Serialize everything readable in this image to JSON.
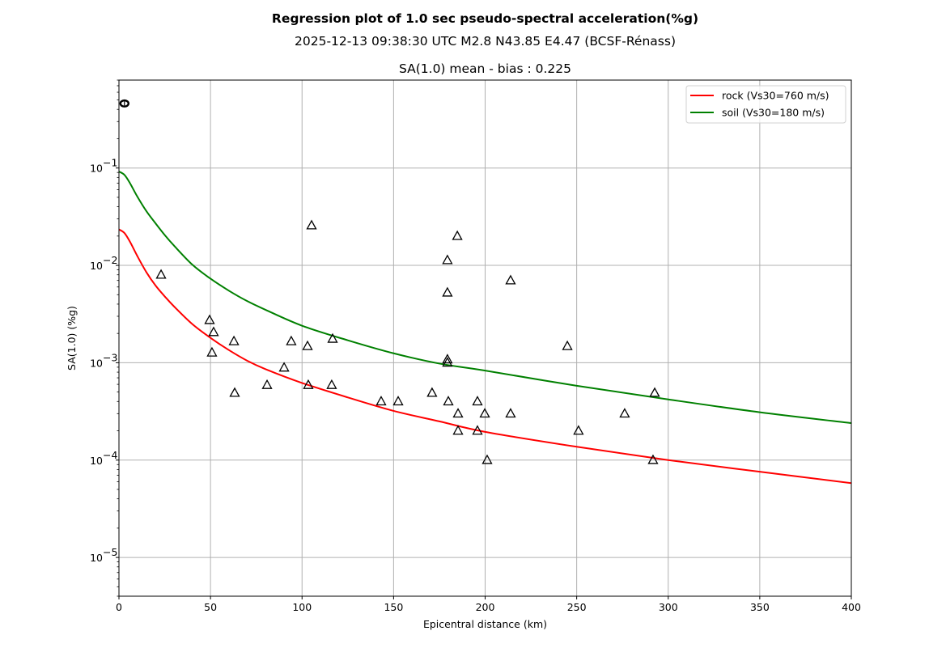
{
  "titles": {
    "main": "Regression plot of 1.0 sec pseudo-spectral acceleration(%g)",
    "event": "2025-12-13 09:38:30 UTC M2.8 N43.85 E4.47 (BCSF-Rénass)",
    "bias": "SA(1.0) mean - bias : 0.225"
  },
  "chart_data": {
    "type": "scatter",
    "title": "Regression plot of 1.0 sec pseudo-spectral acceleration(%g)",
    "subtitle": "2025-12-13 09:38:30 UTC M2.8 N43.85 E4.47 (BCSF-Rénass)",
    "axes_title": "SA(1.0) mean - bias : 0.225",
    "xlabel": "Epicentral distance (km)",
    "ylabel": "SA(1.0) (%g)",
    "xlim": [
      0,
      400
    ],
    "ylim": [
      4e-06,
      0.8
    ],
    "yscale": "log",
    "grid": true,
    "legend_position": "top-right",
    "x_ticks": [
      0,
      50,
      100,
      150,
      200,
      250,
      300,
      350,
      400
    ],
    "x_tick_labels": [
      "0",
      "50",
      "100",
      "150",
      "200",
      "250",
      "300",
      "350",
      "400"
    ],
    "y_ticks": [
      {
        "value": 0.1,
        "base": "10",
        "exp": "−1"
      },
      {
        "value": 0.01,
        "base": "10",
        "exp": "−2"
      },
      {
        "value": 0.001,
        "base": "10",
        "exp": "−3"
      },
      {
        "value": 0.0001,
        "base": "10",
        "exp": "−4"
      },
      {
        "value": 1e-05,
        "base": "10",
        "exp": "−5"
      }
    ],
    "series": [
      {
        "name": "rock (Vs30=760 m/s)",
        "kind": "line",
        "color": "#ff0000",
        "x": [
          0,
          3,
          6,
          10,
          15,
          20,
          25,
          30,
          40,
          50,
          60,
          70,
          80,
          100,
          125,
          150,
          175,
          200,
          250,
          300,
          350,
          400
        ],
        "y": [
          0.0234,
          0.0215,
          0.0175,
          0.0125,
          0.0085,
          0.0062,
          0.0048,
          0.0038,
          0.0025,
          0.0018,
          0.00135,
          0.00105,
          0.00086,
          0.00062,
          0.00044,
          0.00032,
          0.00025,
          0.000195,
          0.000137,
          0.0001,
          7.6e-05,
          5.8e-05
        ]
      },
      {
        "name": "soil (Vs30=180 m/s)",
        "kind": "line",
        "color": "#008000",
        "x": [
          0,
          3,
          6,
          10,
          15,
          20,
          25,
          30,
          40,
          50,
          60,
          70,
          80,
          100,
          125,
          150,
          175,
          200,
          250,
          300,
          350,
          400
        ],
        "y": [
          0.092,
          0.085,
          0.07,
          0.051,
          0.036,
          0.027,
          0.0205,
          0.016,
          0.0102,
          0.0073,
          0.0055,
          0.0043,
          0.0035,
          0.0024,
          0.0017,
          0.00125,
          0.00098,
          0.00083,
          0.00058,
          0.00042,
          0.00031,
          0.00024
        ]
      },
      {
        "name": "stations",
        "kind": "scatter",
        "marker": "triangle",
        "color": "#000000",
        "x": [
          23,
          49.5,
          51.7,
          50.8,
          62.8,
          63.2,
          80.9,
          90.2,
          94.1,
          103,
          103.4,
          105.2,
          116.7,
          116.2,
          143.2,
          152.5,
          171,
          179.4,
          179.4,
          179.4,
          179.4,
          179.9,
          184.8,
          185.2,
          185.2,
          195.8,
          195.8,
          199.8,
          201.1,
          213.9,
          213.9,
          244.9,
          251,
          276.2,
          292.6,
          291.7
        ],
        "y": [
          0.008,
          0.00274,
          0.00206,
          0.00127,
          0.00166,
          0.00049,
          0.00059,
          0.00089,
          0.00166,
          0.00148,
          0.00059,
          0.0257,
          0.00176,
          0.00059,
          0.0004,
          0.0004,
          0.00049,
          0.0113,
          0.00525,
          0.00108,
          0.001,
          0.0004,
          0.02,
          0.0003,
          0.0002,
          0.0004,
          0.0002,
          0.0003,
          0.0001,
          0.007,
          0.0003,
          0.00148,
          0.0002,
          0.0003,
          0.00049,
          0.0001
        ]
      },
      {
        "name": "epicentre",
        "kind": "scatter",
        "marker": "circle",
        "color": "#000000",
        "x": [
          3
        ],
        "y": [
          0.46
        ]
      }
    ]
  }
}
